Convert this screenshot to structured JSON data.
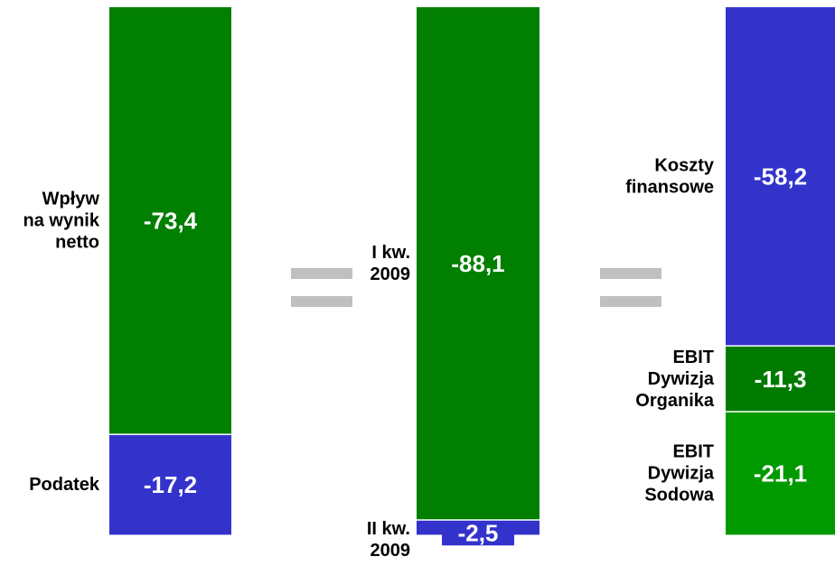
{
  "colors": {
    "dark_green": "#007f00",
    "medium_green": "#007b00",
    "light_green": "#009900",
    "blue": "#3333cc",
    "equals_sign": "#c0c0c0",
    "label_text": "#000000",
    "value_text": "#ffffff"
  },
  "chart_data": {
    "type": "bar",
    "stacked": true,
    "grid": false,
    "legend": "none",
    "separator": "=",
    "columns": [
      {
        "segments": [
          {
            "label_lines": [
              "Wpływ",
              "na wynik",
              "netto"
            ],
            "value": -73.4,
            "value_label": "-73,4",
            "color": "#007f00"
          },
          {
            "label_lines": [
              "Podatek"
            ],
            "value": -17.2,
            "value_label": "-17,2",
            "color": "#3333cc"
          }
        ]
      },
      {
        "segments": [
          {
            "label_lines": [
              "I kw.",
              "2009"
            ],
            "value": -88.1,
            "value_label": "-88,1",
            "color": "#007f00"
          },
          {
            "label_lines": [
              "II kw.",
              "2009"
            ],
            "value": -2.5,
            "value_label": "-2,5",
            "color": "#3333cc"
          }
        ]
      },
      {
        "segments": [
          {
            "label_lines": [
              "Koszty",
              "finansowe"
            ],
            "value": -58.2,
            "value_label": "-58,2",
            "color": "#3333cc"
          },
          {
            "label_lines": [
              "EBIT",
              "Dywizja",
              "Organika"
            ],
            "value": -11.3,
            "value_label": "-11,3",
            "color": "#007b00"
          },
          {
            "label_lines": [
              "EBIT",
              "Dywizja",
              "Sodowa"
            ],
            "value": -21.1,
            "value_label": "-21,1",
            "color": "#009900"
          }
        ]
      }
    ]
  }
}
